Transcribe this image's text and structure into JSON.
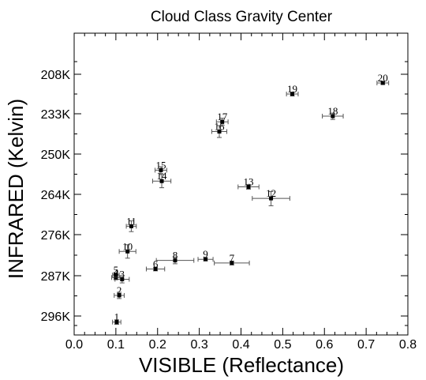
{
  "chart_data": {
    "type": "scatter",
    "title": "Cloud Class Gravity Center",
    "xlabel": "VISIBLE (Reflectance)",
    "ylabel": "INFRARED (Kelvin)",
    "xlim": [
      0.0,
      0.8
    ],
    "xticks": [
      "0.0",
      "0.1",
      "0.2",
      "0.3",
      "0.4",
      "0.5",
      "0.6",
      "0.7",
      "0.8"
    ],
    "yticks": [
      {
        "value": 208,
        "label": "208K"
      },
      {
        "value": 233,
        "label": "233K"
      },
      {
        "value": 250,
        "label": "250K"
      },
      {
        "value": 264,
        "label": "264K"
      },
      {
        "value": 276,
        "label": "276K"
      },
      {
        "value": 287,
        "label": "287K"
      },
      {
        "value": 296,
        "label": "296K"
      }
    ],
    "y_axis_note": "inverted nonlinear temperature scale",
    "points": [
      {
        "label": "1",
        "x": 0.102,
        "y": 297.6,
        "xerr": 0.01,
        "yerr": 0.6
      },
      {
        "label": "2",
        "x": 0.108,
        "y": 291.4,
        "xerr": 0.012,
        "yerr": 0.7
      },
      {
        "label": "3",
        "x": 0.115,
        "y": 287.8,
        "xerr": 0.017,
        "yerr": 0.8
      },
      {
        "label": "4",
        "x": 0.1,
        "y": 287.4,
        "xerr": 0.01,
        "yerr": 0.5
      },
      {
        "label": "5",
        "x": 0.1,
        "y": 286.8,
        "xerr": 0.008,
        "yerr": 0.5
      },
      {
        "label": "6",
        "x": 0.195,
        "y": 285.2,
        "xerr": 0.022,
        "yerr": 0.5
      },
      {
        "label": "7",
        "x": 0.378,
        "y": 283.6,
        "xerr": 0.042,
        "yerr": 0.5
      },
      {
        "label": "8",
        "x": 0.242,
        "y": 282.9,
        "xerr": 0.045,
        "yerr": 0.9
      },
      {
        "label": "9",
        "x": 0.315,
        "y": 282.6,
        "xerr": 0.018,
        "yerr": 0.4
      },
      {
        "label": "10",
        "x": 0.128,
        "y": 280.5,
        "xerr": 0.02,
        "yerr": 1.8
      },
      {
        "label": "11",
        "x": 0.137,
        "y": 273.5,
        "xerr": 0.012,
        "yerr": 1.6
      },
      {
        "label": "12",
        "x": 0.472,
        "y": 265.2,
        "xerr": 0.045,
        "yerr": 2.2
      },
      {
        "label": "13",
        "x": 0.418,
        "y": 261.4,
        "xerr": 0.025,
        "yerr": 0.8
      },
      {
        "label": "14",
        "x": 0.21,
        "y": 259.4,
        "xerr": 0.022,
        "yerr": 2.3
      },
      {
        "label": "15",
        "x": 0.208,
        "y": 255.6,
        "xerr": 0.014,
        "yerr": 1.2
      },
      {
        "label": "16",
        "x": 0.348,
        "y": 240.5,
        "xerr": 0.018,
        "yerr": 2.5
      },
      {
        "label": "17",
        "x": 0.355,
        "y": 236.4,
        "xerr": 0.014,
        "yerr": 1.5
      },
      {
        "label": "18",
        "x": 0.62,
        "y": 234.0,
        "xerr": 0.025,
        "yerr": 1.4
      },
      {
        "label": "19",
        "x": 0.523,
        "y": 220.5,
        "xerr": 0.014,
        "yerr": 1.2
      },
      {
        "label": "20",
        "x": 0.74,
        "y": 213.5,
        "xerr": 0.014,
        "yerr": 0.9
      }
    ],
    "marker_color": "#000000",
    "grid": false,
    "legend": "none"
  }
}
